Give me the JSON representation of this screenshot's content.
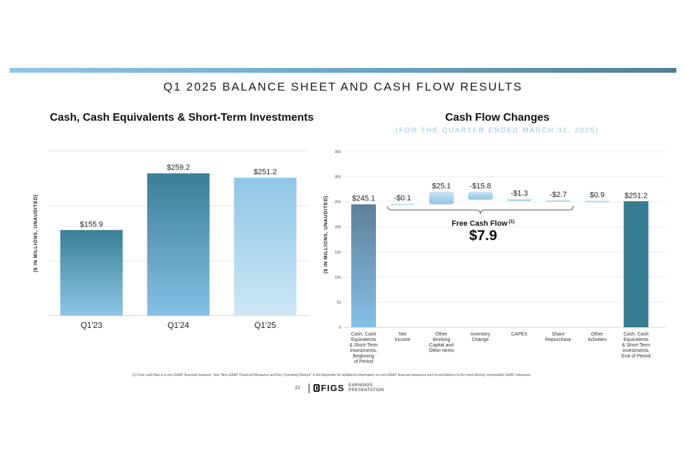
{
  "page": {
    "title": "Q1 2025 BALANCE SHEET AND CASH FLOW RESULTS",
    "footnote": "(1) Free cash flow is a non-GAAP financial measure. See “Non-GAAP Financial Measures and Key Operating Metrics” in the Appendix for additional information on non-GAAP financial measures and reconciliations to the most directly comparable GAAP measures.",
    "page_number": "21",
    "brand": "FIGS",
    "brand_line1": "EARNINGS",
    "brand_line2": "PRESENTATION"
  },
  "left_chart": {
    "title": "Cash, Cash Equivalents & Short-Term Investments"
  },
  "right_chart": {
    "title": "Cash Flow Changes",
    "subtitle": "(FOR THE QUARTER ENDED MARCH 31, 2025)",
    "fcf_label": "Free Cash Flow",
    "fcf_superscript": "(1)",
    "fcf_value": "$7.9"
  },
  "chart_data": [
    {
      "type": "bar",
      "title": "Cash, Cash Equivalents & Short-Term Investments",
      "ylabel": "($ IN MILLIONS, UNAUDITED)",
      "categories": [
        "Q1'23",
        "Q1'24",
        "Q1'25"
      ],
      "values": [
        155.9,
        259.2,
        251.2
      ],
      "labels": [
        "$155.9",
        "$259.2",
        "$251.2"
      ],
      "ylim": [
        0,
        300
      ],
      "grid": true,
      "colors": [
        "#3a7f95",
        "#3a7f95",
        "#8fc6e6"
      ]
    },
    {
      "type": "waterfall",
      "title": "Cash Flow Changes",
      "ylabel": "($ IN MILLIONS, UNAUDITED)",
      "categories": [
        "Cash, Cash Equivalents & Short-Term Investments, Beginning of Period",
        "Net Income",
        "Other Working Capital and Other Items",
        "Inventory Change",
        "CAPEX",
        "Share Repurchase",
        "Other Activities",
        "Cash, Cash Equivalents & Short-Term Investments, End of Period"
      ],
      "category_lines": [
        [
          "Cash, Cash",
          "Equivalents",
          "& Short-Term",
          "Investments,",
          "Beginning",
          "of Period"
        ],
        [
          "Net",
          "Income"
        ],
        [
          "Other",
          "Working",
          "Capital and",
          "Other Items"
        ],
        [
          "Inventory",
          "Change"
        ],
        [
          "CAPEX"
        ],
        [
          "Share",
          "Repurchase"
        ],
        [
          "Other",
          "Activities"
        ],
        [
          "Cash, Cash",
          "Equivalents",
          "& Short-Term",
          "Investments,",
          "End of Period"
        ]
      ],
      "values": [
        245.1,
        -0.1,
        25.1,
        -15.8,
        -1.3,
        -2.7,
        0.9,
        251.2
      ],
      "labels": [
        "$245.1",
        "-$0.1",
        "$25.1",
        "-$15.8",
        "-$1.3",
        "-$2.7",
        "$0.9",
        "$251.2"
      ],
      "kinds": [
        "total",
        "delta",
        "delta",
        "delta",
        "delta",
        "delta",
        "delta",
        "total"
      ],
      "yticks": [
        0,
        50,
        100,
        150,
        200,
        250,
        300,
        350
      ],
      "ylim": [
        0,
        350
      ],
      "grid": true,
      "colors": {
        "start": "#5f7f99",
        "end": "#367d92",
        "delta": "#a9d2ec"
      }
    }
  ]
}
